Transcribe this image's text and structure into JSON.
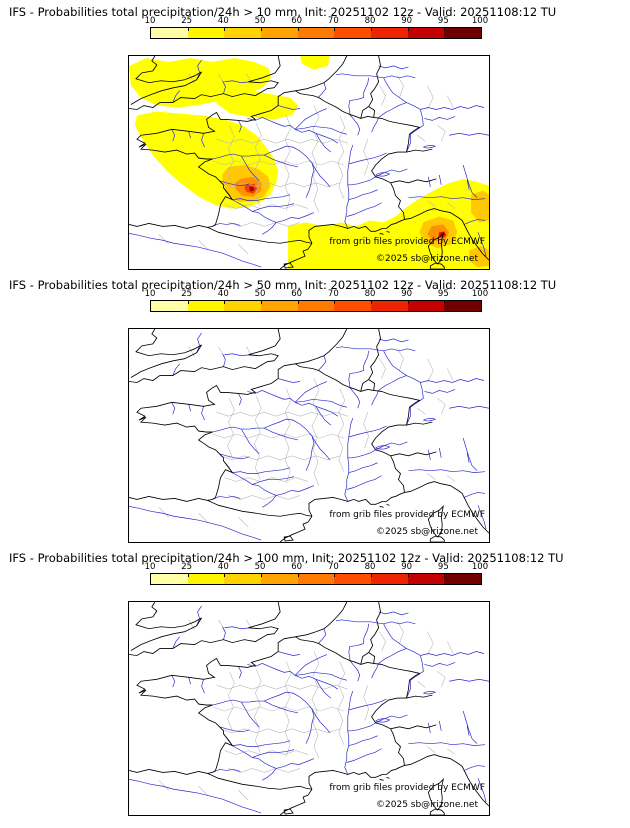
{
  "colorbar": {
    "ticks": [
      "10",
      "25",
      "40",
      "50",
      "60",
      "70",
      "80",
      "90",
      "95",
      "100"
    ],
    "colors": [
      "#ffffa8",
      "#fff500",
      "#ffd200",
      "#ffa400",
      "#ff7a00",
      "#ff4e00",
      "#ee2400",
      "#c40000",
      "#700000"
    ]
  },
  "map_colors": {
    "river": "#2a2ad0",
    "admin": "#b9b9b9",
    "coast": "#000000",
    "precip_low": "#ffff00",
    "precip_mid": "#ffc800",
    "precip_high": "#ff9000",
    "precip_extreme": "#f03c00"
  },
  "panels": [
    {
      "title": "IFS - Probabilities total precipitation/24h > 10 mm, Init: 20251102 12z - Valid: 20251108:12 TU",
      "show_precip": true,
      "credit_line1": "from grib files provided by ECMWF",
      "credit_line2": "©2025 sb@irizone.net"
    },
    {
      "title": "IFS - Probabilities total precipitation/24h > 50 mm, Init: 20251102 12z - Valid: 20251108:12 TU",
      "show_precip": false,
      "credit_line1": "from grib files provided by ECMWF",
      "credit_line2": "©2025 sb@irizone.net"
    },
    {
      "title": "IFS - Probabilities total precipitation/24h > 100 mm, Init: 20251102 12z - Valid: 20251108:12 TU",
      "show_precip": false,
      "credit_line1": "from grib files provided by ECMWF",
      "credit_line2": "©2025 sb@irizone.net"
    }
  ]
}
